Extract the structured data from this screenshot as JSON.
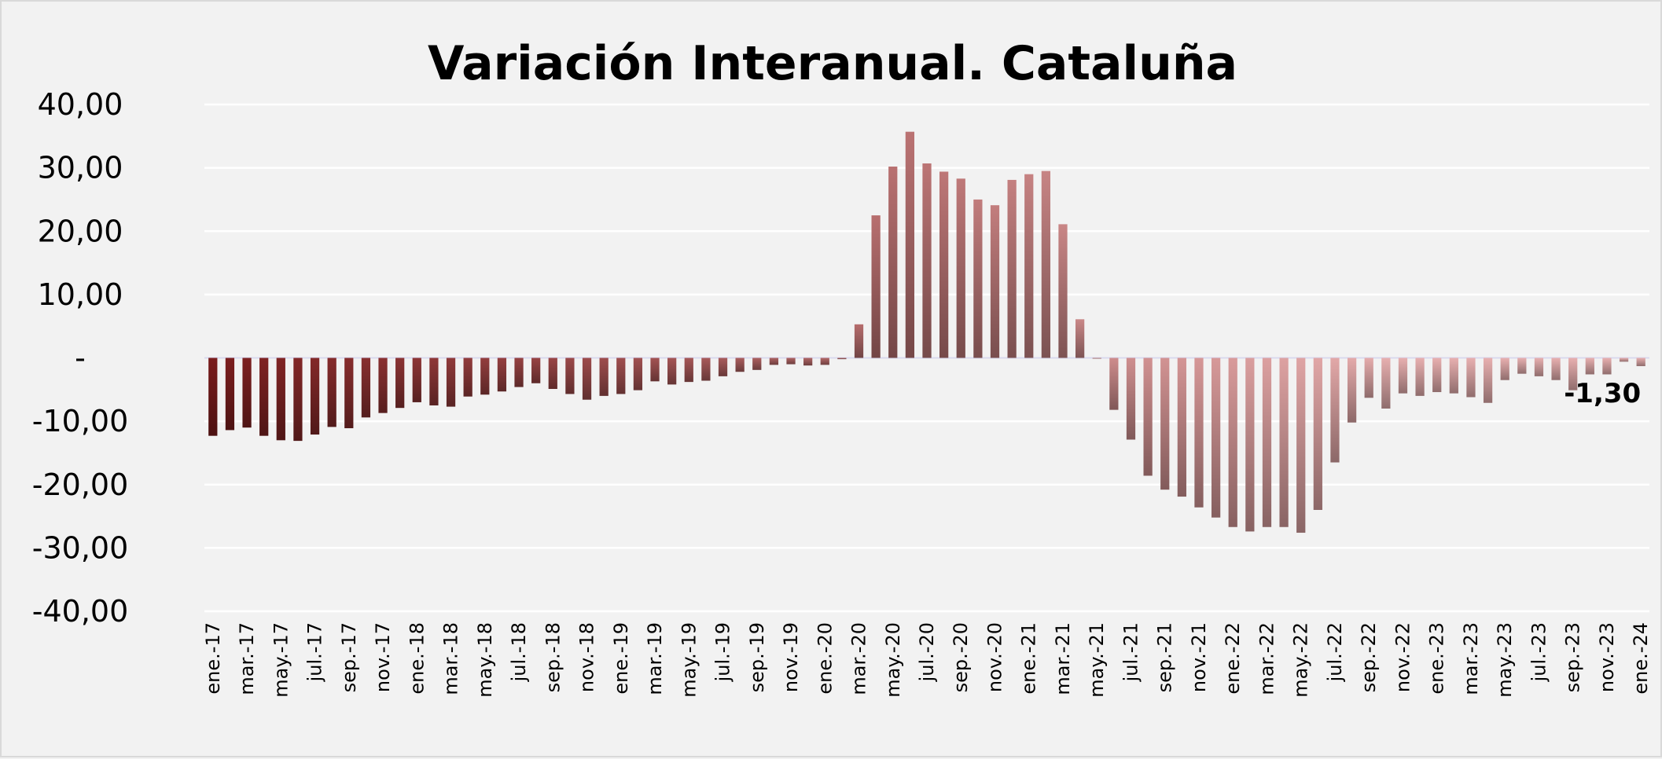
{
  "chart_data": {
    "type": "bar",
    "title": "Variación Interanual. Cataluña",
    "xlabel": "",
    "ylabel": "",
    "ylim": [
      -40,
      40
    ],
    "yticks": [
      40,
      30,
      20,
      10,
      0,
      -10,
      -20,
      -30,
      -40
    ],
    "ytick_labels": [
      "40,00",
      "30,00",
      "20,00",
      "10,00",
      "-",
      "-10,00",
      "-20,00",
      "-30,00",
      "-40,00"
    ],
    "grid": true,
    "legend": "none",
    "categories": [
      "ene.-17",
      "feb.-17",
      "mar.-17",
      "abr.-17",
      "may.-17",
      "jun.-17",
      "jul.-17",
      "ago.-17",
      "sep.-17",
      "oct.-17",
      "nov.-17",
      "dic.-17",
      "ene.-18",
      "feb.-18",
      "mar.-18",
      "abr.-18",
      "may.-18",
      "jun.-18",
      "jul.-18",
      "ago.-18",
      "sep.-18",
      "oct.-18",
      "nov.-18",
      "dic.-18",
      "ene.-19",
      "feb.-19",
      "mar.-19",
      "abr.-19",
      "may.-19",
      "jun.-19",
      "jul.-19",
      "ago.-19",
      "sep.-19",
      "oct.-19",
      "nov.-19",
      "dic.-19",
      "ene.-20",
      "feb.-20",
      "mar.-20",
      "abr.-20",
      "may.-20",
      "jun.-20",
      "jul.-20",
      "ago.-20",
      "sep.-20",
      "oct.-20",
      "nov.-20",
      "dic.-20",
      "ene.-21",
      "feb.-21",
      "mar.-21",
      "abr.-21",
      "may.-21",
      "jun.-21",
      "jul.-21",
      "ago.-21",
      "sep.-21",
      "oct.-21",
      "nov.-21",
      "dic.-21",
      "ene.-22",
      "feb.-22",
      "mar.-22",
      "abr.-22",
      "may.-22",
      "jun.-22",
      "jul.-22",
      "ago.-22",
      "sep.-22",
      "oct.-22",
      "nov.-22",
      "dic.-22",
      "ene.-23",
      "feb.-23",
      "mar.-23",
      "abr.-23",
      "may.-23",
      "jun.-23",
      "jul.-23",
      "ago.-23",
      "sep.-23",
      "oct.-23",
      "nov.-23",
      "dic.-23",
      "ene.-24"
    ],
    "shown_tick_labels": [
      "ene.-17",
      "mar.-17",
      "may.-17",
      "jul.-17",
      "sep.-17",
      "nov.-17",
      "ene.-18",
      "mar.-18",
      "may.-18",
      "jul.-18",
      "sep.-18",
      "nov.-18",
      "ene.-19",
      "mar.-19",
      "may.-19",
      "jul.-19",
      "sep.-19",
      "nov.-19",
      "ene.-20",
      "mar.-20",
      "may.-20",
      "jul.-20",
      "sep.-20",
      "nov.-20",
      "ene.-21",
      "mar.-21",
      "may.-21",
      "jul.-21",
      "sep.-21",
      "nov.-21",
      "ene.-22",
      "mar.-22",
      "may.-22",
      "jul.-22",
      "sep.-22",
      "nov.-22",
      "ene.-23",
      "mar.-23",
      "may.-23",
      "jul.-23",
      "sep.-23",
      "nov.-23",
      "ene.-24"
    ],
    "values": [
      -12.3,
      -11.4,
      -11.0,
      -12.3,
      -13.0,
      -13.1,
      -12.1,
      -10.9,
      -11.1,
      -9.4,
      -8.7,
      -7.9,
      -7.0,
      -7.5,
      -7.7,
      -6.1,
      -5.8,
      -5.3,
      -4.6,
      -4.0,
      -4.9,
      -5.7,
      -6.6,
      -6.0,
      -5.7,
      -5.1,
      -3.7,
      -4.2,
      -3.8,
      -3.6,
      -2.9,
      -2.2,
      -1.9,
      -1.1,
      -1.0,
      -1.2,
      -1.1,
      -0.2,
      5.3,
      22.5,
      30.2,
      35.7,
      30.7,
      29.4,
      28.3,
      25.0,
      24.1,
      28.1,
      29.0,
      29.5,
      21.1,
      6.1,
      -0.1,
      -8.2,
      -12.9,
      -18.6,
      -20.8,
      -21.9,
      -23.6,
      -25.2,
      -26.7,
      -27.4,
      -26.7,
      -26.7,
      -27.6,
      -24.0,
      -16.5,
      -10.2,
      -6.3,
      -8.0,
      -5.6,
      -6.0,
      -5.4,
      -5.6,
      -6.2,
      -7.1,
      -3.5,
      -2.5,
      -2.9,
      -3.5,
      -5.1,
      -2.6,
      -2.6,
      -0.6,
      -1.3
    ],
    "annotations": [
      {
        "category": "ene.-24",
        "text": "-1,30"
      }
    ],
    "colors": {
      "bar_dark": "#7a1c1c",
      "bar_light": "#e8b0b0",
      "grid": "#ffffff",
      "background": "#f2f2f2"
    }
  }
}
